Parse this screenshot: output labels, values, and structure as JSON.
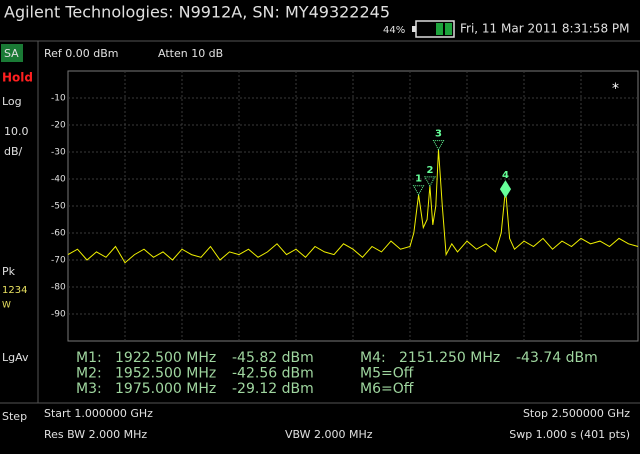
{
  "header": {
    "title": "Agilent Technologies: N9912A, SN: MY49322245",
    "battery": "44%",
    "datetime": "Fri, 11 Mar 2011 8:31:58 PM"
  },
  "sidebar": {
    "mode": "SA",
    "hold": "Hold",
    "scale": "Log",
    "scale_value": "10.0",
    "scale_unit": "dB/",
    "detector": "Pk",
    "traces": "1234",
    "trace_state": "W",
    "average": "LgAv",
    "step": "Step"
  },
  "settings": {
    "ref": "Ref 0.00 dBm",
    "atten": "Atten 10 dB",
    "start": "Start 1.000000 GHz",
    "stop": "Stop 2.500000 GHz",
    "rbw": "Res BW 2.000 MHz",
    "vbw": "VBW 2.000 MHz",
    "sweep": "Swp 1.000  s (401 pts)"
  },
  "spectrum": {
    "xlim": [
      1000,
      2500
    ],
    "ylim": [
      -100,
      0
    ],
    "xticks": [
      1150,
      1300,
      1450,
      1600,
      1750,
      1900,
      2050,
      2200,
      2350
    ],
    "yticks": [
      -10,
      -20,
      -30,
      -40,
      -50,
      -60,
      -70,
      -80,
      -90
    ],
    "symbol": "*",
    "trace": {
      "color": "#f0f000",
      "x": [
        1000,
        1025,
        1050,
        1075,
        1100,
        1125,
        1150,
        1175,
        1200,
        1225,
        1250,
        1275,
        1300,
        1325,
        1350,
        1375,
        1400,
        1425,
        1450,
        1475,
        1500,
        1525,
        1550,
        1575,
        1600,
        1625,
        1650,
        1675,
        1700,
        1725,
        1750,
        1775,
        1800,
        1825,
        1850,
        1875,
        1900,
        1910,
        1922.5,
        1935,
        1945,
        1952.5,
        1960,
        1968,
        1975,
        1985,
        1995,
        2010,
        2025,
        2050,
        2075,
        2100,
        2125,
        2140,
        2151.25,
        2162,
        2175,
        2200,
        2225,
        2250,
        2275,
        2300,
        2325,
        2350,
        2375,
        2400,
        2425,
        2450,
        2475,
        2500
      ],
      "values": [
        -68,
        -66,
        -70,
        -67,
        -69,
        -65,
        -71,
        -68,
        -66,
        -69,
        -67,
        -70,
        -66,
        -68,
        -69,
        -65,
        -70,
        -67,
        -68,
        -66,
        -69,
        -67,
        -64,
        -68,
        -66,
        -69,
        -65,
        -67,
        -68,
        -64,
        -66,
        -69,
        -65,
        -67,
        -63,
        -66,
        -65,
        -60,
        -45.82,
        -58,
        -55,
        -42.56,
        -57,
        -50,
        -29.12,
        -50,
        -68,
        -64,
        -67,
        -63,
        -66,
        -64,
        -67,
        -60,
        -43.74,
        -62,
        -66,
        -63,
        -65,
        -62,
        -66,
        -63,
        -65,
        -62,
        -64,
        -63,
        -65,
        -62,
        -64,
        -65
      ]
    },
    "markers": [
      {
        "id": "1",
        "name": "M1:",
        "freq": 1922.5,
        "freq_label": "1922.500 MHz",
        "amp": -45.82,
        "amp_label": "-45.82 dBm"
      },
      {
        "id": "2",
        "name": "M2:",
        "freq": 1952.5,
        "freq_label": "1952.500 MHz",
        "amp": -42.56,
        "amp_label": "-42.56 dBm"
      },
      {
        "id": "3",
        "name": "M3:",
        "freq": 1975,
        "freq_label": "1975.000 MHz",
        "amp": -29.12,
        "amp_label": "-29.12 dBm"
      },
      {
        "id": "4",
        "name": "M4:",
        "freq": 2151.25,
        "freq_label": "2151.250 MHz",
        "amp": -43.74,
        "amp_label": "-43.74 dBm"
      }
    ],
    "markers_off": [
      "M5=Off",
      "M6=Off"
    ]
  }
}
